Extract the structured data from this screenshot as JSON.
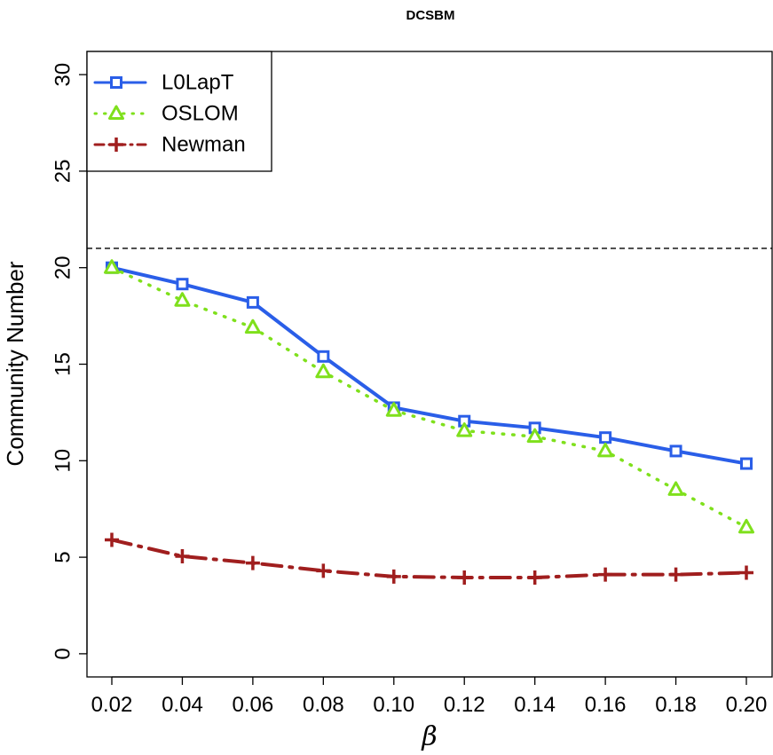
{
  "chart_data": {
    "type": "line",
    "title": "DCSBM",
    "xlabel": "β",
    "ylabel": "Community Number",
    "x": [
      0.02,
      0.04,
      0.06,
      0.08,
      0.1,
      0.12,
      0.14,
      0.16,
      0.18,
      0.2
    ],
    "x_tick_labels": [
      "0.02",
      "0.04",
      "0.06",
      "0.08",
      "0.10",
      "0.12",
      "0.14",
      "0.16",
      "0.18",
      "0.20"
    ],
    "y_ticks": [
      0,
      5,
      10,
      15,
      20,
      25,
      30
    ],
    "y_tick_labels": [
      "0",
      "5",
      "10",
      "15",
      "20",
      "25",
      "30"
    ],
    "ylim": [
      -1.2,
      31.2
    ],
    "reference_line": {
      "y": 21,
      "style": "dashed"
    },
    "legend_position": "top-left",
    "series": [
      {
        "name": "L0LapT",
        "color": "#2a5ee8",
        "line": "solid",
        "marker": "square",
        "values": [
          20.0,
          19.15,
          18.2,
          15.4,
          12.75,
          12.05,
          11.7,
          11.2,
          10.5,
          9.85
        ]
      },
      {
        "name": "OSLOM",
        "color": "#7fe01c",
        "line": "dotted",
        "marker": "triangle",
        "values": [
          20.0,
          18.3,
          16.9,
          14.6,
          12.6,
          11.55,
          11.25,
          10.5,
          8.5,
          6.55
        ]
      },
      {
        "name": "Newman",
        "color": "#a01e1e",
        "line": "dashdot",
        "marker": "plus",
        "values": [
          5.9,
          5.05,
          4.7,
          4.3,
          4.0,
          3.95,
          3.95,
          4.1,
          4.1,
          4.2
        ]
      }
    ]
  }
}
